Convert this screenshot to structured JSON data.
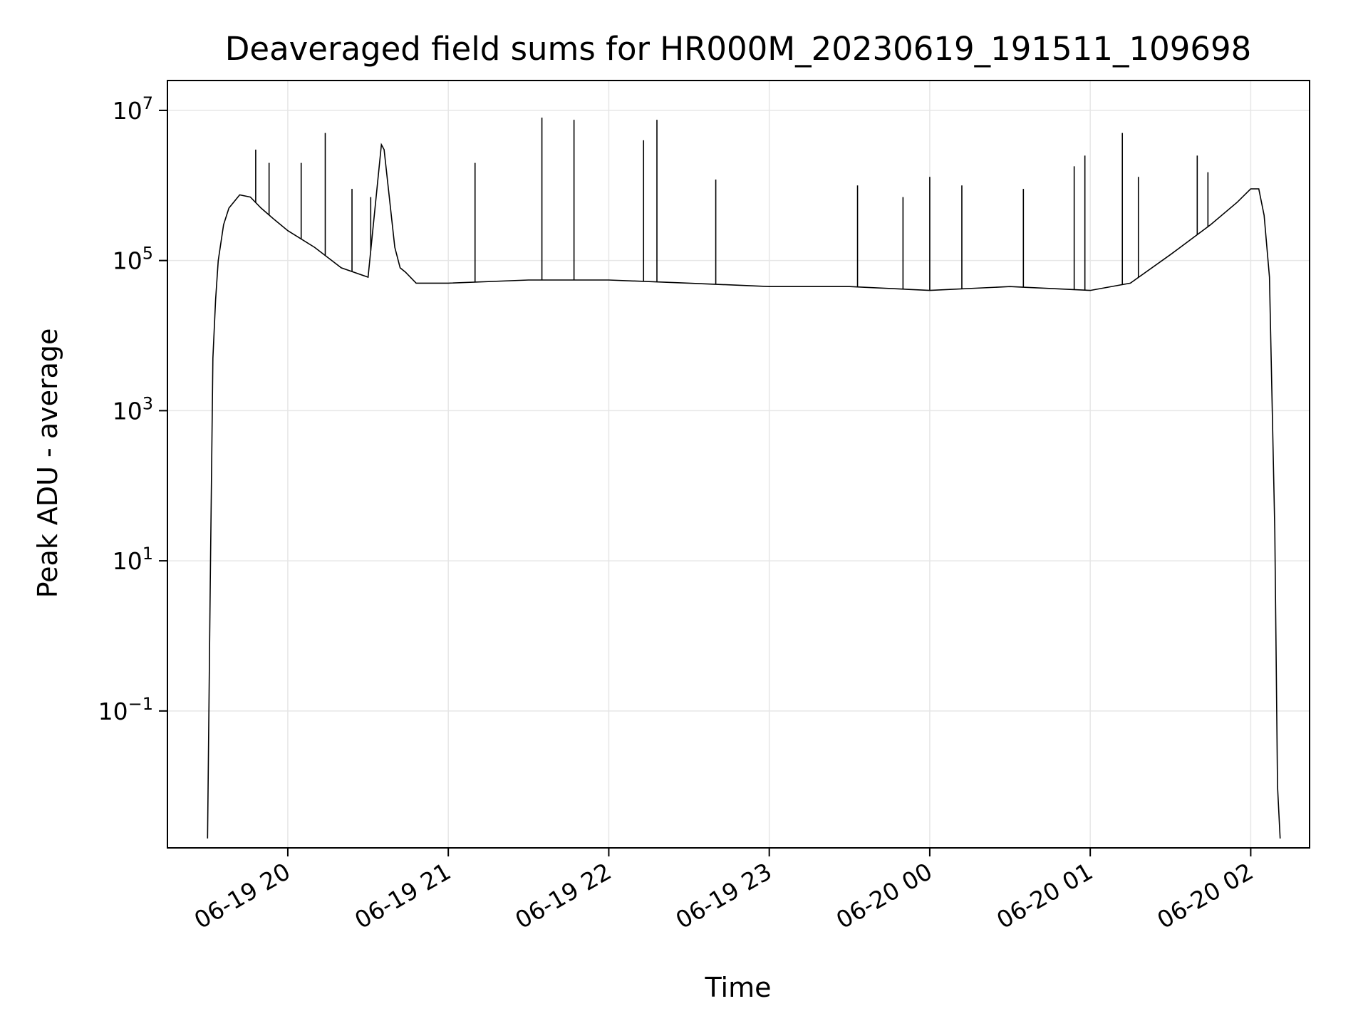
{
  "chart_data": {
    "type": "line",
    "title": "Deaveraged field sums for HR000M_20230619_191511_109698",
    "xlabel": "Time",
    "ylabel": "Peak ADU - average",
    "y_scale": "log",
    "ylim": [
      0.0015,
      25000000
    ],
    "xlim": [
      "2023-06-19 19:15",
      "2023-06-20 02:22"
    ],
    "grid": true,
    "line_color": "#000000",
    "grid_color": "#e6e6e6",
    "x_ticks": [
      {
        "value": "2023-06-19 20:00",
        "label": "06-19 20"
      },
      {
        "value": "2023-06-19 21:00",
        "label": "06-19 21"
      },
      {
        "value": "2023-06-19 22:00",
        "label": "06-19 22"
      },
      {
        "value": "2023-06-19 23:00",
        "label": "06-19 23"
      },
      {
        "value": "2023-06-20 00:00",
        "label": "06-20 00"
      },
      {
        "value": "2023-06-20 01:00",
        "label": "06-20 01"
      },
      {
        "value": "2023-06-20 02:00",
        "label": "06-20 02"
      }
    ],
    "y_ticks": [
      {
        "value": 0.1,
        "base": "10",
        "exp": "−1"
      },
      {
        "value": 10,
        "base": "10",
        "exp": "1"
      },
      {
        "value": 1000,
        "base": "10",
        "exp": "3"
      },
      {
        "value": 100000,
        "base": "10",
        "exp": "5"
      },
      {
        "value": 10000000,
        "base": "10",
        "exp": "7"
      }
    ],
    "series": [
      {
        "x": [
          "2023-06-19 19:30",
          "2023-06-19 19:31",
          "2023-06-19 19:32",
          "2023-06-19 19:33",
          "2023-06-19 19:34",
          "2023-06-19 19:36",
          "2023-06-19 19:38",
          "2023-06-19 19:42",
          "2023-06-19 19:46",
          "2023-06-19 19:50",
          "2023-06-19 19:55",
          "2023-06-19 20:00",
          "2023-06-19 20:10",
          "2023-06-19 20:20",
          "2023-06-19 20:30",
          "2023-06-19 20:35",
          "2023-06-19 20:36",
          "2023-06-19 20:40",
          "2023-06-19 20:42",
          "2023-06-19 20:44",
          "2023-06-19 20:48",
          "2023-06-19 21:00",
          "2023-06-19 21:30",
          "2023-06-19 22:00",
          "2023-06-19 22:30",
          "2023-06-19 23:00",
          "2023-06-19 23:30",
          "2023-06-20 00:00",
          "2023-06-20 00:30",
          "2023-06-20 01:00",
          "2023-06-20 01:15",
          "2023-06-20 01:30",
          "2023-06-20 01:45",
          "2023-06-20 01:55",
          "2023-06-20 02:00",
          "2023-06-20 02:03",
          "2023-06-20 02:05",
          "2023-06-20 02:07",
          "2023-06-20 02:09",
          "2023-06-20 02:10",
          "2023-06-20 02:11"
        ],
        "y": [
          0.002,
          5,
          5000,
          30000,
          100000,
          300000,
          500000,
          750000,
          700000,
          500000,
          350000,
          250000,
          150000,
          80000,
          60000,
          3500000,
          3000000,
          150000,
          80000,
          70000,
          50000,
          50000,
          55000,
          55000,
          50000,
          45000,
          45000,
          40000,
          45000,
          40000,
          50000,
          120000,
          300000,
          600000,
          900000,
          900000,
          400000,
          60000,
          25,
          0.01,
          0.002
        ]
      }
    ],
    "spikes": [
      {
        "x": "2023-06-19 19:48",
        "y": 3000000
      },
      {
        "x": "2023-06-19 19:53",
        "y": 2000000
      },
      {
        "x": "2023-06-19 20:05",
        "y": 2000000
      },
      {
        "x": "2023-06-19 20:14",
        "y": 5000000
      },
      {
        "x": "2023-06-19 20:24",
        "y": 900000
      },
      {
        "x": "2023-06-19 20:31",
        "y": 700000
      },
      {
        "x": "2023-06-19 21:10",
        "y": 2000000
      },
      {
        "x": "2023-06-19 21:35",
        "y": 8000000
      },
      {
        "x": "2023-06-19 21:47",
        "y": 7500000
      },
      {
        "x": "2023-06-19 22:13",
        "y": 4000000
      },
      {
        "x": "2023-06-19 22:18",
        "y": 7500000
      },
      {
        "x": "2023-06-19 22:40",
        "y": 1200000
      },
      {
        "x": "2023-06-19 23:33",
        "y": 1000000
      },
      {
        "x": "2023-06-19 23:50",
        "y": 700000
      },
      {
        "x": "2023-06-20 00:00",
        "y": 1300000
      },
      {
        "x": "2023-06-20 00:12",
        "y": 1000000
      },
      {
        "x": "2023-06-20 00:35",
        "y": 900000
      },
      {
        "x": "2023-06-20 00:54",
        "y": 1800000
      },
      {
        "x": "2023-06-20 00:58",
        "y": 2500000
      },
      {
        "x": "2023-06-20 01:12",
        "y": 5000000
      },
      {
        "x": "2023-06-20 01:18",
        "y": 1300000
      },
      {
        "x": "2023-06-20 01:40",
        "y": 2500000
      },
      {
        "x": "2023-06-20 01:44",
        "y": 1500000
      }
    ]
  }
}
